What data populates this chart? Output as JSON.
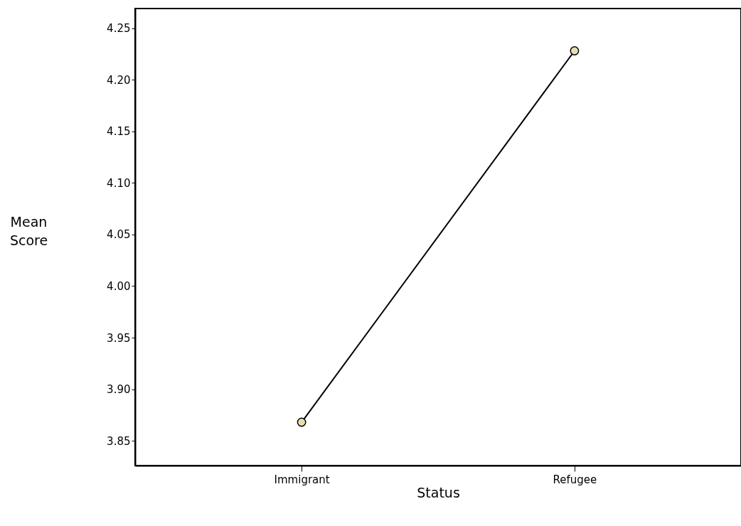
{
  "chart_data": {
    "type": "line",
    "xlabel": "Status",
    "ylabel": "Mean Score",
    "categories": [
      "Immigrant",
      "Refugee"
    ],
    "series": [
      {
        "color": "#000000",
        "values": [
          3.868,
          4.228
        ]
      }
    ],
    "ylim": [
      3.826,
      4.269
    ],
    "yticks": [
      3.85,
      {
        "value": 3.9,
        "label": "3.90"
      },
      3.95,
      {
        "value": 4.0,
        "label": "4.00"
      },
      4.05,
      {
        "value": 4.1,
        "label": "4.10"
      },
      4.15,
      {
        "value": 4.2,
        "label": "4.20"
      },
      4.25
    ],
    "grid": false,
    "marker": "circle",
    "line_style": "solid"
  }
}
